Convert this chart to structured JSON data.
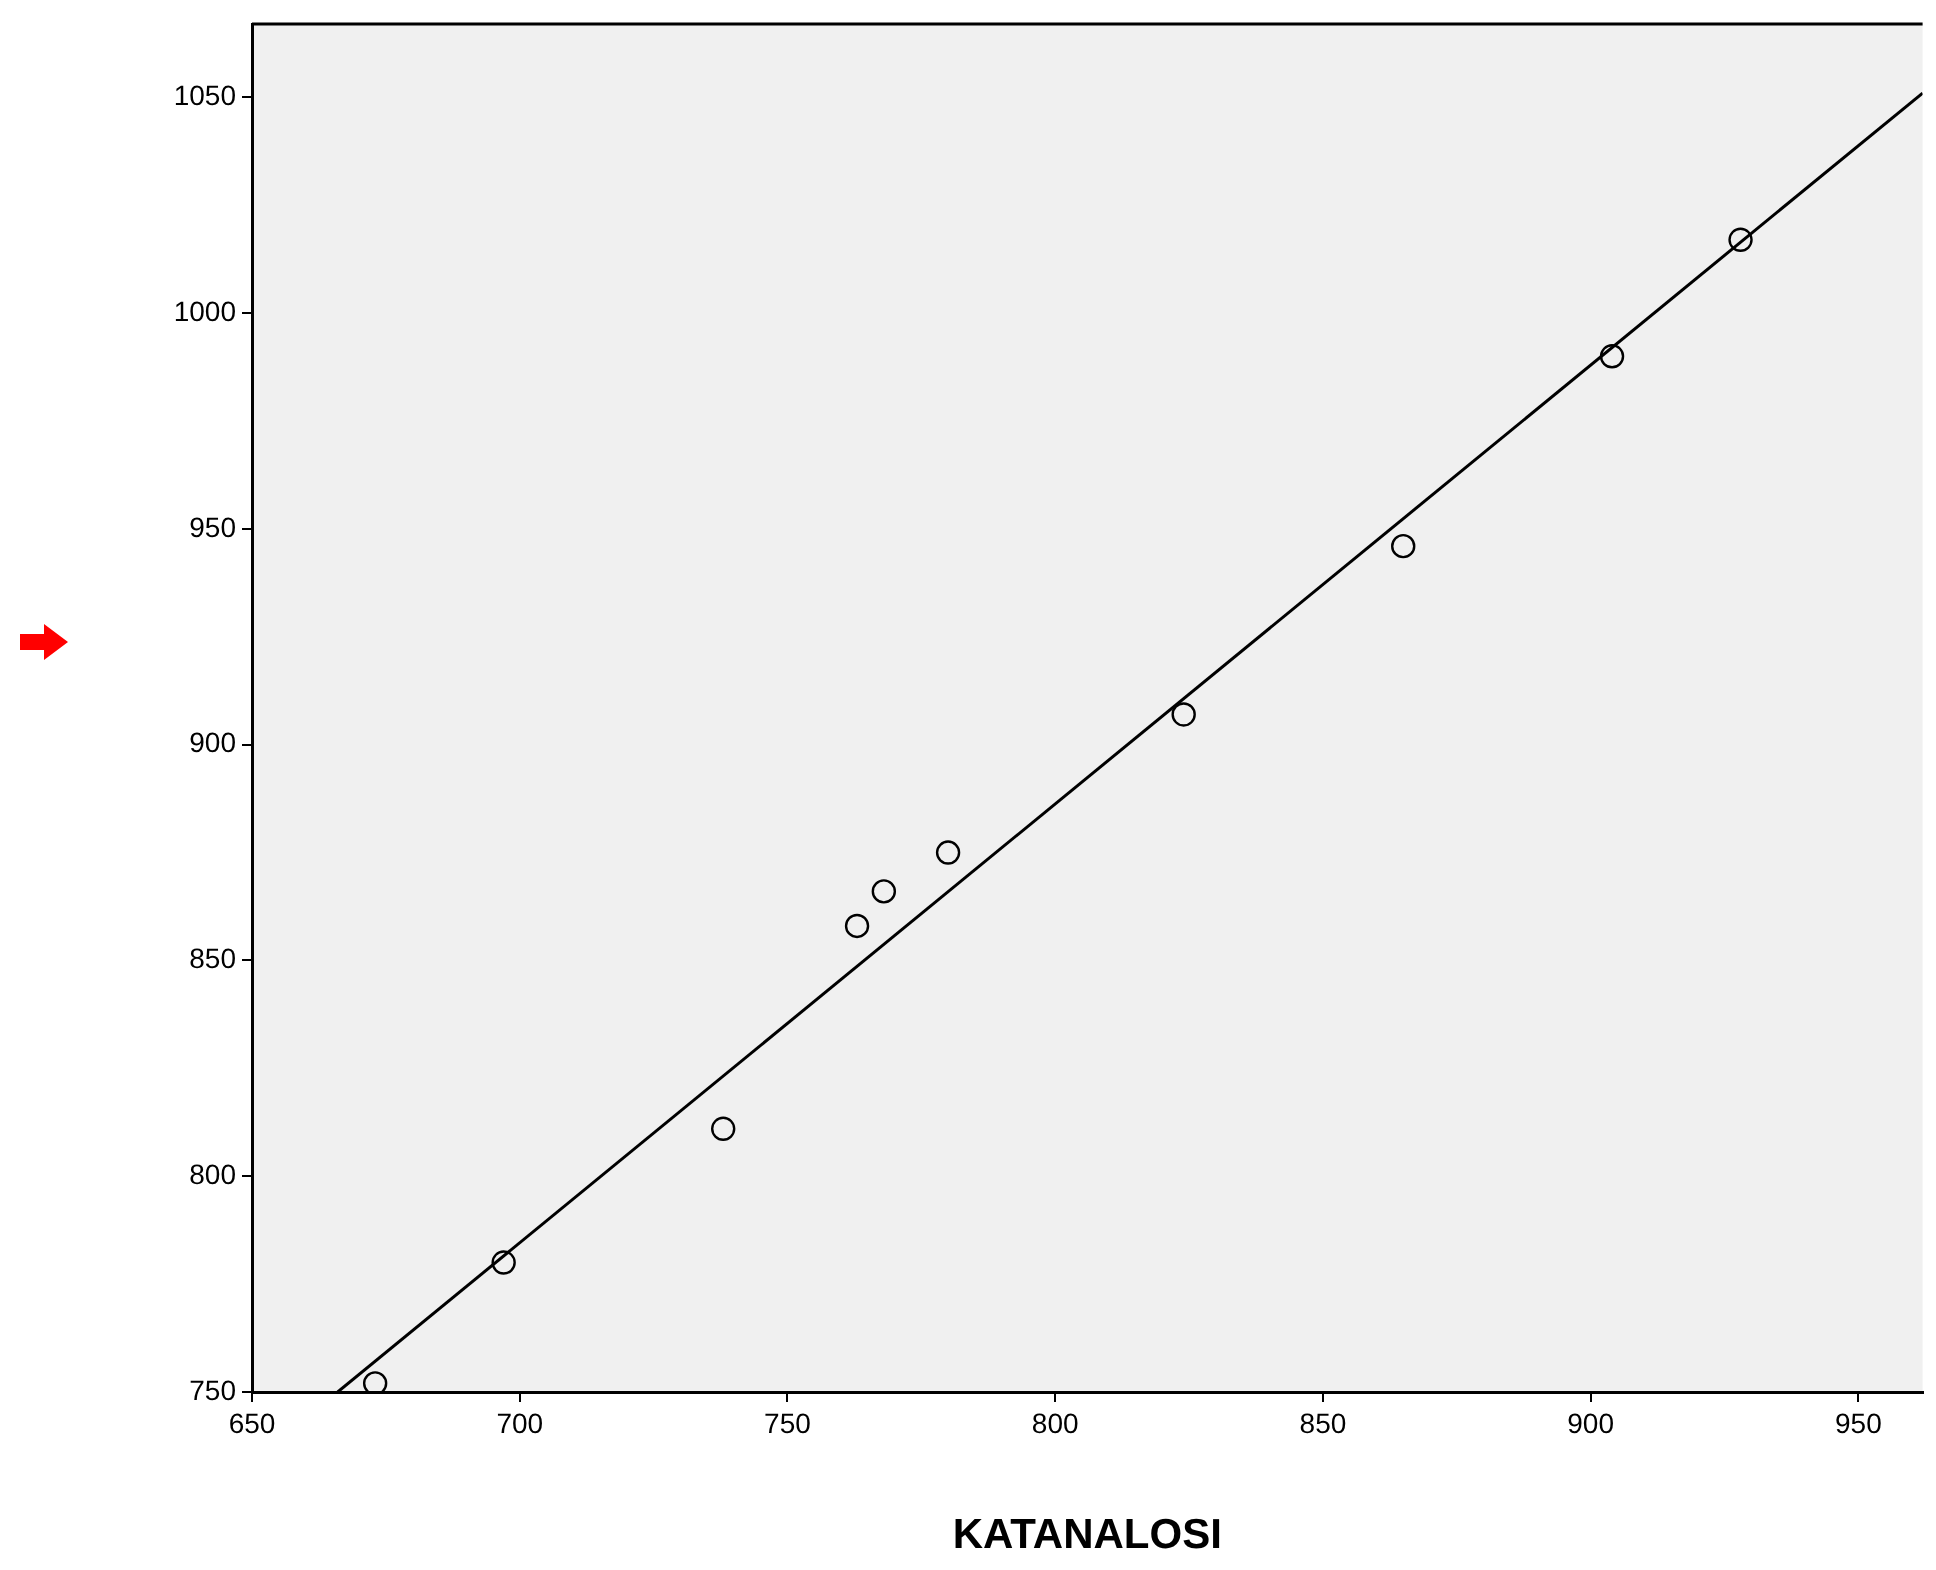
{
  "chart_data": {
    "type": "scatter",
    "xlabel": "KATANALOSI",
    "xlim": [
      650,
      962
    ],
    "ylim": [
      750,
      1067
    ],
    "xticks": [
      650,
      700,
      750,
      800,
      850,
      900,
      950
    ],
    "yticks": [
      750,
      800,
      850,
      900,
      950,
      1000,
      1050
    ],
    "grid": false,
    "legend": false,
    "marker": "circle",
    "series": [
      {
        "type": "scatter",
        "color": "#000000",
        "x": [
          673,
          697,
          738,
          763,
          768,
          780,
          824,
          865,
          904,
          928
        ],
        "values": [
          752,
          780,
          811,
          858,
          866,
          875,
          907,
          946,
          990,
          1017
        ]
      },
      {
        "type": "line",
        "color": "#000000",
        "marker": "none",
        "line_style": "solid",
        "x": [
          666,
          962
        ],
        "values": [
          750,
          1051
        ]
      }
    ]
  }
}
